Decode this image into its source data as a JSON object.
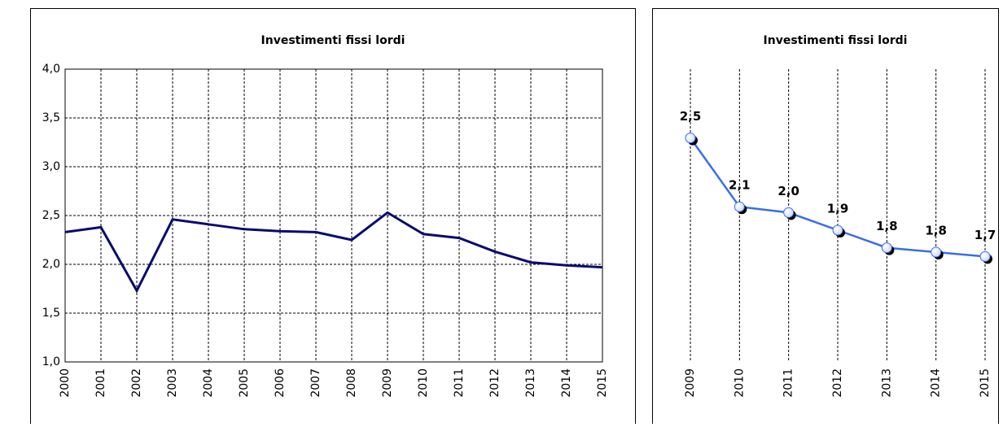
{
  "chart_data": [
    {
      "type": "line",
      "title": "Investimenti fissi lordi",
      "categories": [
        "2000",
        "2001",
        "2002",
        "2003",
        "2004",
        "2005",
        "2006",
        "2007",
        "2008",
        "2009",
        "2010",
        "2011",
        "2012",
        "2013",
        "2014",
        "2015"
      ],
      "series": [
        {
          "color": "#0a0a6e",
          "values": [
            2.33,
            2.38,
            1.73,
            2.46,
            2.41,
            2.36,
            2.34,
            2.33,
            2.25,
            2.53,
            2.31,
            2.27,
            2.13,
            2.02,
            1.99,
            1.97
          ]
        }
      ],
      "ylim": [
        1,
        4
      ],
      "yticks": [
        {
          "value": 1,
          "label": "1,0"
        },
        {
          "value": 1.5,
          "label": "1,5"
        },
        {
          "value": 2,
          "label": "2,0"
        },
        {
          "value": 2.5,
          "label": "2,5"
        },
        {
          "value": 3,
          "label": "3,0"
        },
        {
          "value": 3.5,
          "label": "3,5"
        },
        {
          "value": 4,
          "label": "4,0"
        }
      ],
      "grid": true
    },
    {
      "type": "line",
      "title": "Investimenti fissi lordi",
      "categories": [
        "2009",
        "2010",
        "2011",
        "2012",
        "2013",
        "2014",
        "2015"
      ],
      "series": [
        {
          "color": "#3a6ee8",
          "values": [
            2.53,
            2.06,
            2.02,
            1.9,
            1.78,
            1.75,
            1.72
          ],
          "value_labels": [
            "2,5",
            "2,1",
            "2,0",
            "1,9",
            "1,8",
            "1,8",
            "1,7"
          ]
        }
      ],
      "ylim": [
        1,
        3
      ],
      "grid": false
    }
  ]
}
